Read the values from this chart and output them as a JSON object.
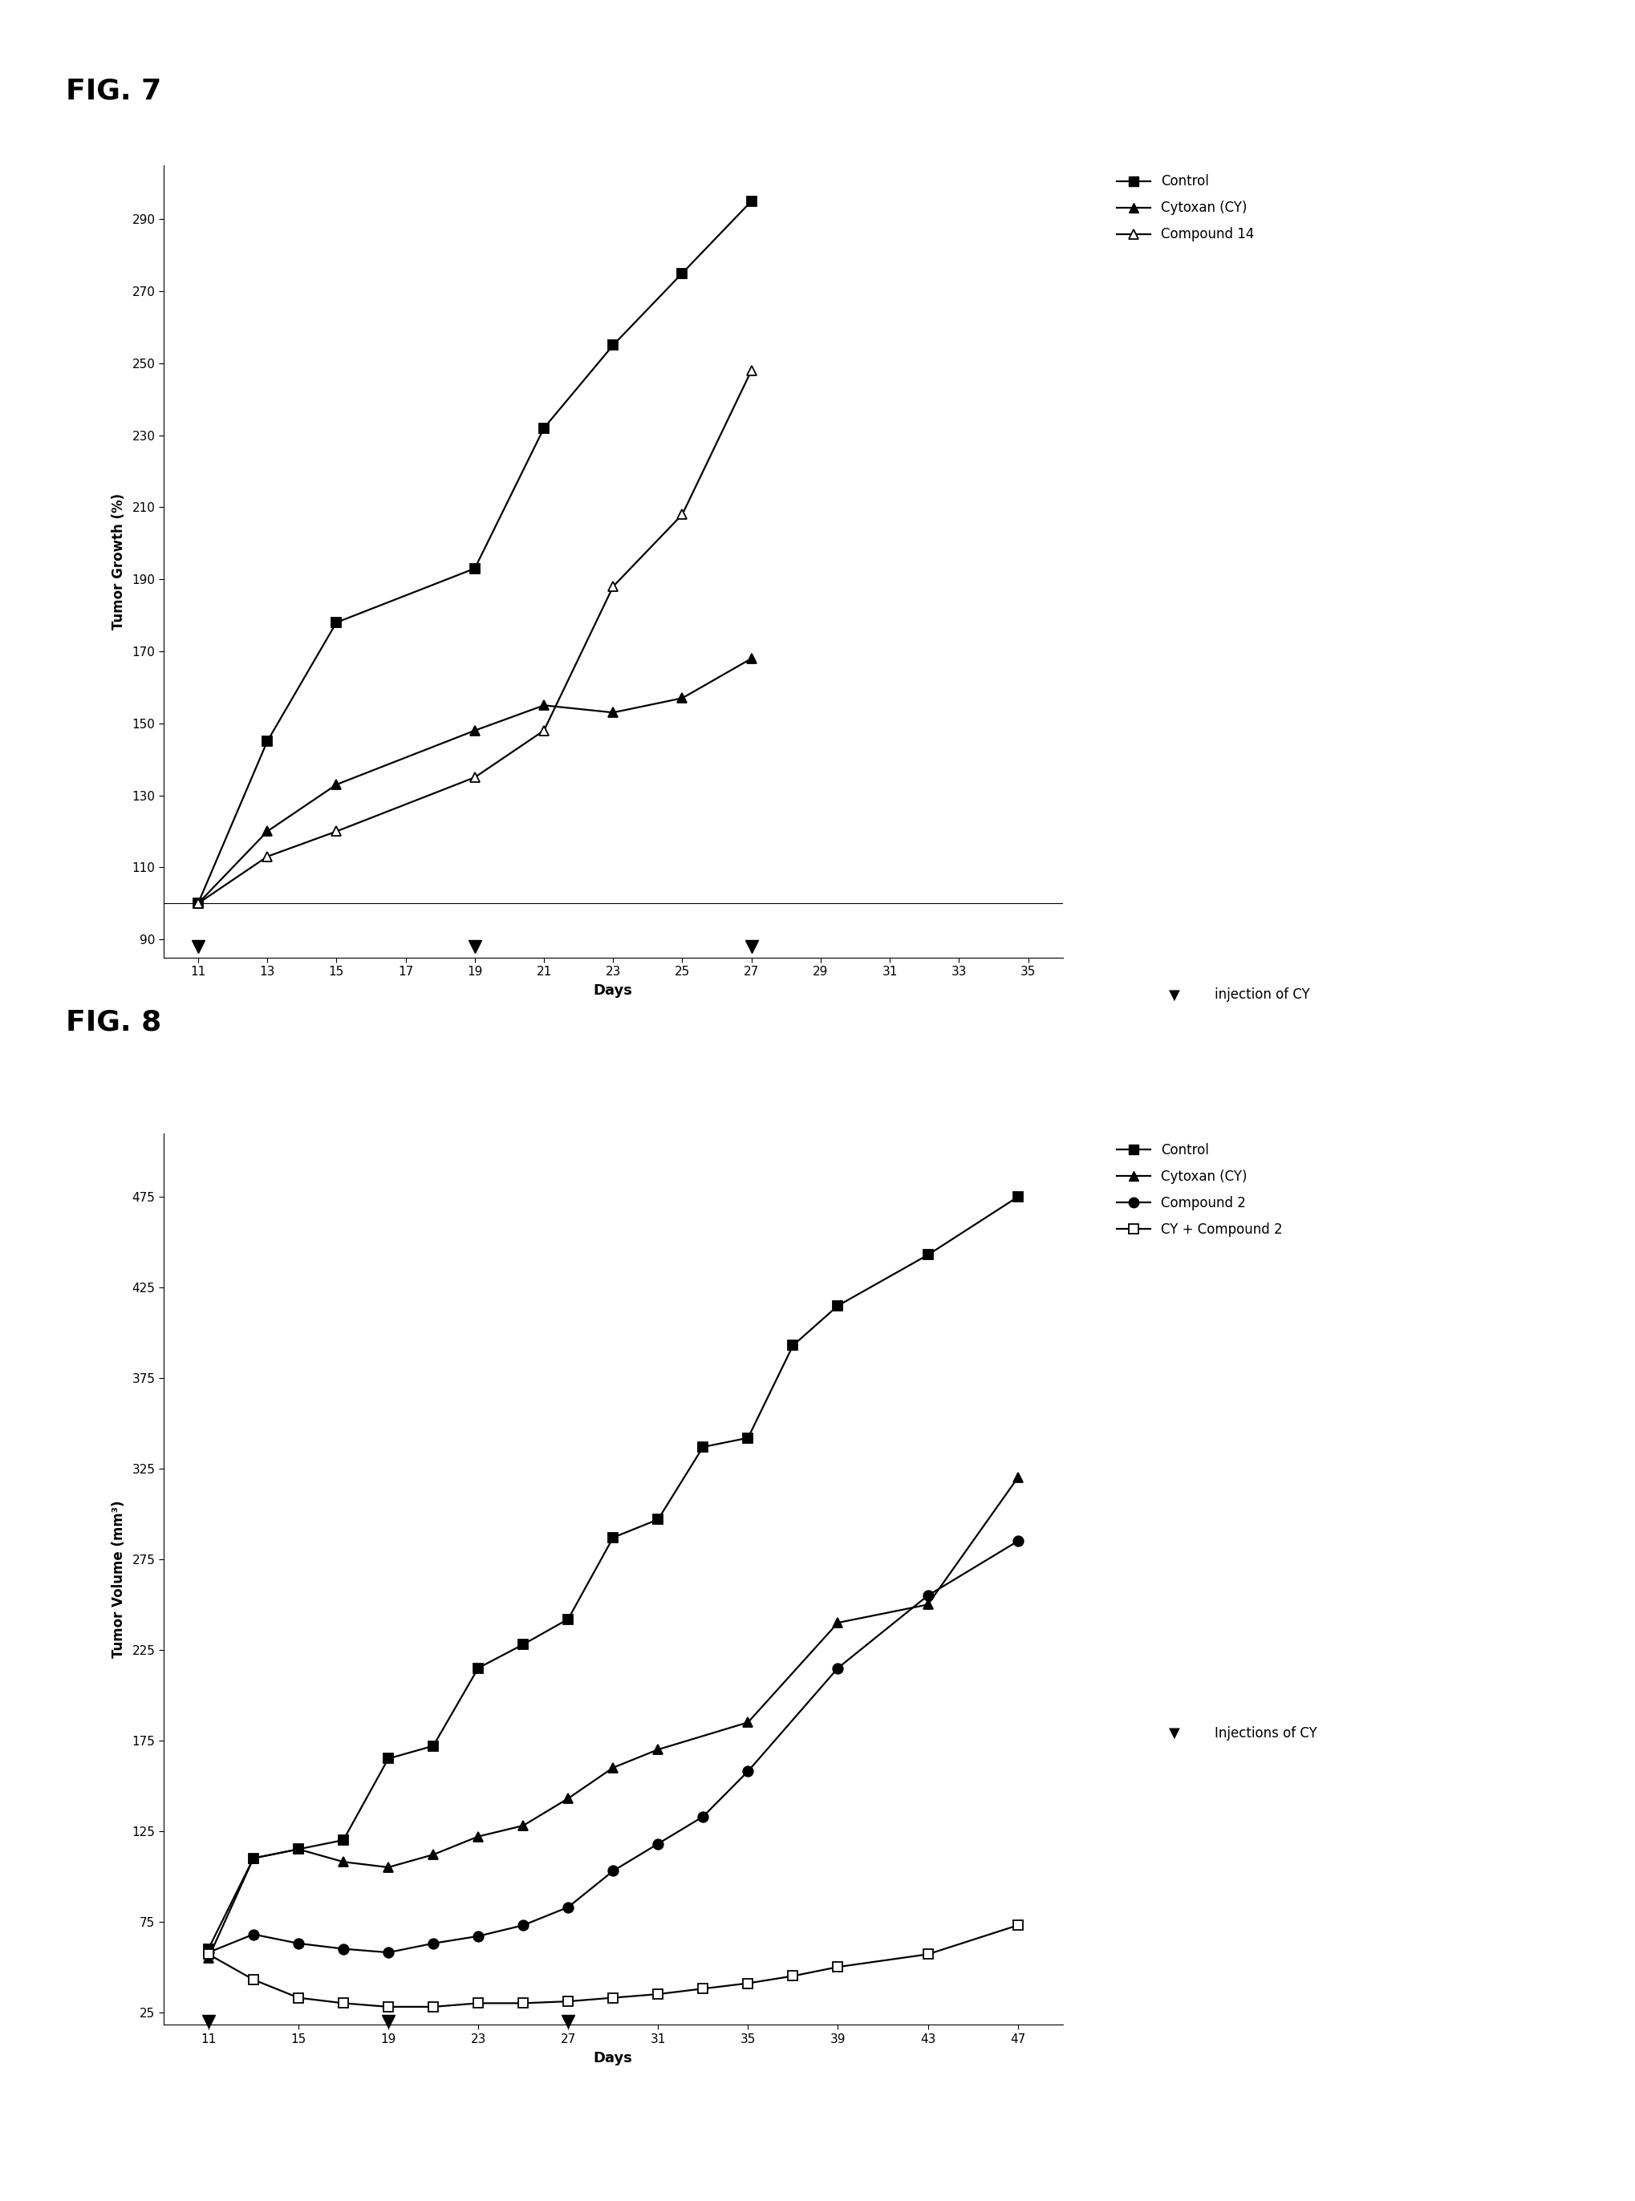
{
  "fig7_title": "FIG. 7",
  "fig8_title": "FIG. 8",
  "fig7": {
    "xlabel": "Days",
    "ylabel": "Tumor Growth (%)",
    "xlim": [
      10,
      36
    ],
    "ylim": [
      85,
      305
    ],
    "xticks": [
      11,
      13,
      15,
      17,
      19,
      21,
      23,
      25,
      27,
      29,
      31,
      33,
      35
    ],
    "yticks": [
      90,
      110,
      130,
      150,
      170,
      190,
      210,
      230,
      250,
      270,
      290
    ],
    "baseline_y": 100,
    "injection_days": [
      11,
      19,
      27
    ],
    "injection_y": 88,
    "inj_label": "injection of CY",
    "series": [
      {
        "label": "Control",
        "x": [
          11,
          13,
          15,
          19,
          21,
          23,
          25,
          27
        ],
        "y": [
          100,
          145,
          178,
          193,
          232,
          255,
          275,
          295
        ],
        "marker": "s",
        "fillstyle": "full"
      },
      {
        "label": "Cytoxan (CY)",
        "x": [
          11,
          13,
          15,
          19,
          21,
          23,
          25,
          27
        ],
        "y": [
          100,
          120,
          133,
          148,
          155,
          153,
          157,
          168
        ],
        "marker": "^",
        "fillstyle": "full"
      },
      {
        "label": "Compound 14",
        "x": [
          11,
          13,
          15,
          19,
          21,
          23,
          25,
          27
        ],
        "y": [
          100,
          113,
          120,
          135,
          148,
          188,
          208,
          248
        ],
        "marker": "^",
        "fillstyle": "none"
      }
    ]
  },
  "fig8": {
    "xlabel": "Days",
    "ylabel": "Tumor Volume (mm³)",
    "xlim": [
      9,
      49
    ],
    "ylim": [
      18,
      510
    ],
    "xticks": [
      11,
      15,
      19,
      23,
      27,
      31,
      35,
      39,
      43,
      47
    ],
    "yticks": [
      25,
      75,
      125,
      175,
      225,
      275,
      325,
      375,
      425,
      475
    ],
    "injection_days": [
      11,
      19,
      27
    ],
    "injection_y": 20,
    "inj_label": "Injections of CY",
    "series": [
      {
        "label": "Control",
        "x": [
          11,
          13,
          15,
          17,
          19,
          21,
          23,
          25,
          27,
          29,
          31,
          33,
          35,
          37,
          39,
          43,
          47
        ],
        "y": [
          60,
          110,
          115,
          120,
          165,
          172,
          215,
          228,
          242,
          287,
          297,
          337,
          342,
          393,
          415,
          443,
          475
        ],
        "marker": "s",
        "fillstyle": "full"
      },
      {
        "label": "Cytoxan (CY)",
        "x": [
          11,
          13,
          15,
          17,
          19,
          21,
          23,
          25,
          27,
          29,
          31,
          35,
          39,
          43,
          47
        ],
        "y": [
          55,
          110,
          115,
          108,
          105,
          112,
          122,
          128,
          143,
          160,
          170,
          185,
          240,
          250,
          320
        ],
        "marker": "^",
        "fillstyle": "full"
      },
      {
        "label": "Compound 2",
        "x": [
          11,
          13,
          15,
          17,
          19,
          21,
          23,
          25,
          27,
          29,
          31,
          33,
          35,
          39,
          43,
          47
        ],
        "y": [
          58,
          68,
          63,
          60,
          58,
          63,
          67,
          73,
          83,
          103,
          118,
          133,
          158,
          215,
          255,
          285
        ],
        "marker": "o",
        "fillstyle": "full"
      },
      {
        "label": "CY + Compound 2",
        "x": [
          11,
          13,
          15,
          17,
          19,
          21,
          23,
          25,
          27,
          29,
          31,
          33,
          35,
          37,
          39,
          43,
          47
        ],
        "y": [
          57,
          43,
          33,
          30,
          28,
          28,
          30,
          30,
          31,
          33,
          35,
          38,
          41,
          45,
          50,
          57,
          73
        ],
        "marker": "s",
        "fillstyle": "none"
      }
    ]
  }
}
